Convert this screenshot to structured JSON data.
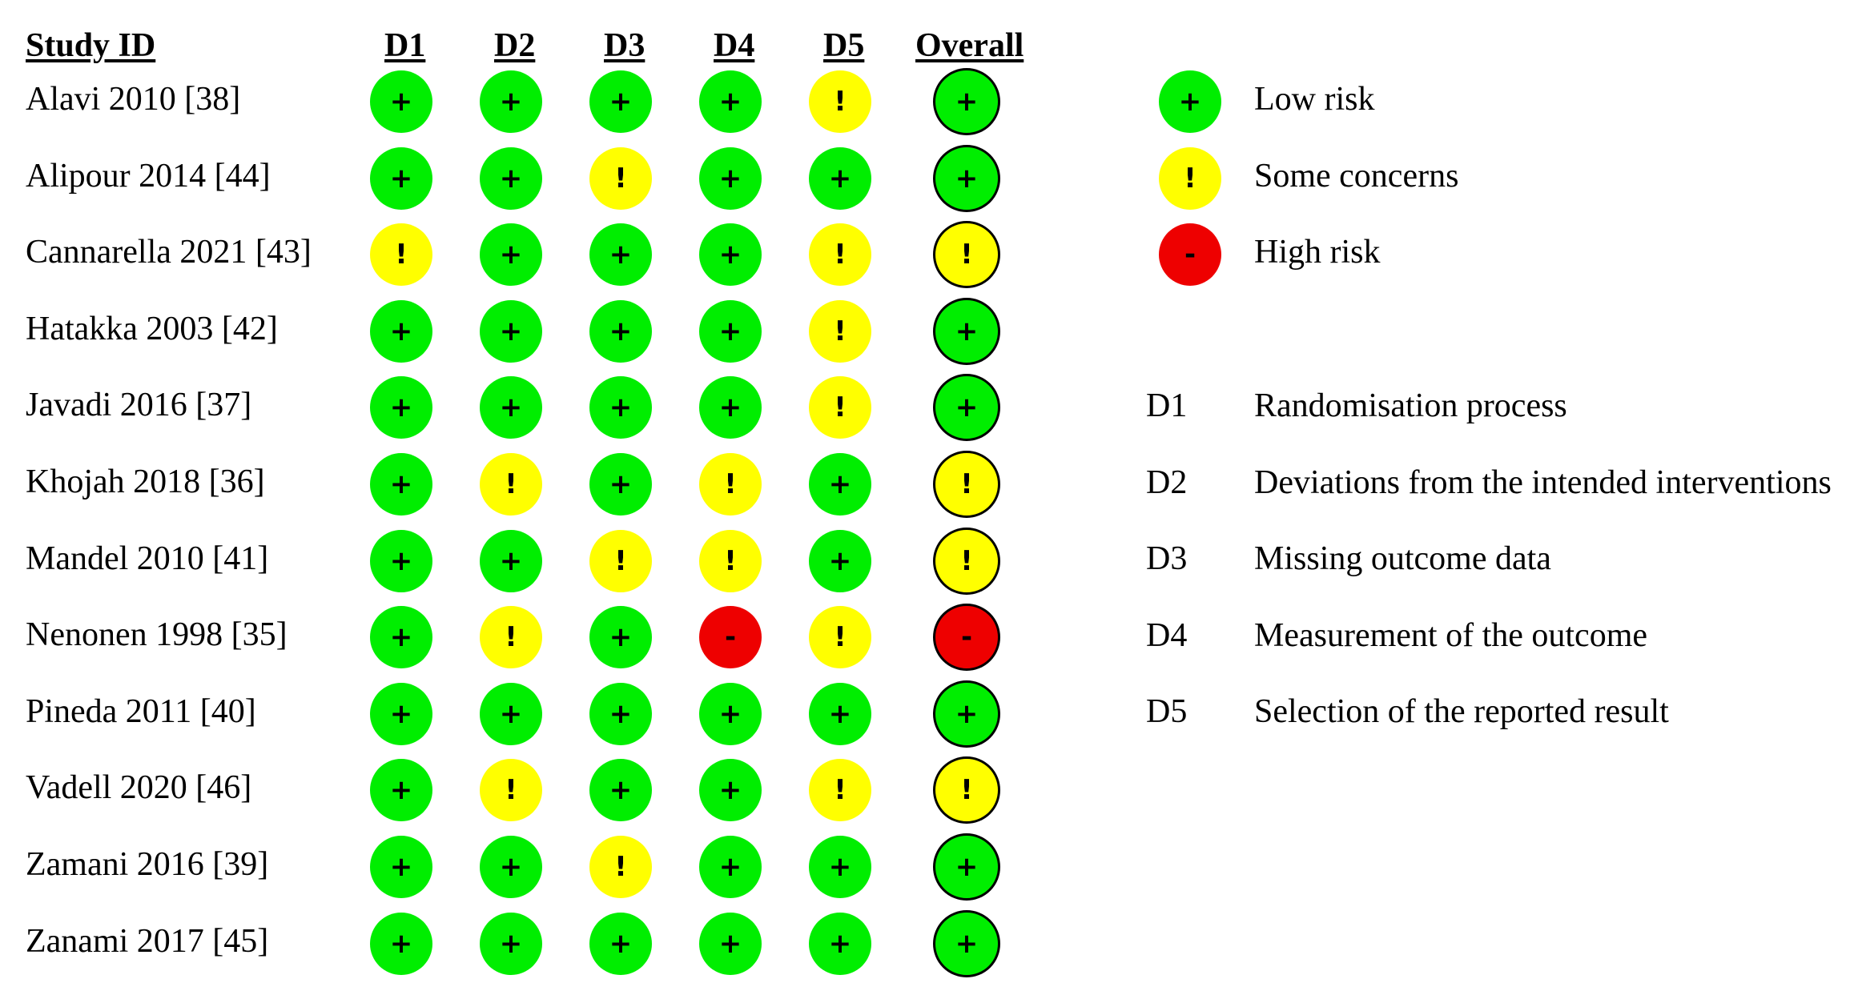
{
  "headers": {
    "study_id": "Study ID",
    "domains": [
      "D1",
      "D2",
      "D3",
      "D4",
      "D5"
    ],
    "overall": "Overall"
  },
  "judgements": {
    "low": {
      "symbol": "+",
      "color": "#00ee00"
    },
    "some": {
      "symbol": "!",
      "color": "#ffff00"
    },
    "high": {
      "symbol": "-",
      "color": "#ee0000"
    }
  },
  "studies": [
    {
      "name": "Alavi 2010 [38]",
      "domains": [
        "low",
        "low",
        "low",
        "low",
        "some"
      ],
      "overall": "low"
    },
    {
      "name": "Alipour 2014 [44]",
      "domains": [
        "low",
        "low",
        "some",
        "low",
        "low"
      ],
      "overall": "low"
    },
    {
      "name": "Cannarella 2021 [43]",
      "domains": [
        "some",
        "low",
        "low",
        "low",
        "some"
      ],
      "overall": "some"
    },
    {
      "name": "Hatakka 2003 [42]",
      "domains": [
        "low",
        "low",
        "low",
        "low",
        "some"
      ],
      "overall": "low"
    },
    {
      "name": "Javadi 2016 [37]",
      "domains": [
        "low",
        "low",
        "low",
        "low",
        "some"
      ],
      "overall": "low"
    },
    {
      "name": "Khojah 2018 [36]",
      "domains": [
        "low",
        "some",
        "low",
        "some",
        "low"
      ],
      "overall": "some"
    },
    {
      "name": "Mandel 2010 [41]",
      "domains": [
        "low",
        "low",
        "some",
        "some",
        "low"
      ],
      "overall": "some"
    },
    {
      "name": "Nenonen 1998 [35]",
      "domains": [
        "low",
        "some",
        "low",
        "high",
        "some"
      ],
      "overall": "high"
    },
    {
      "name": "Pineda 2011 [40]",
      "domains": [
        "low",
        "low",
        "low",
        "low",
        "low"
      ],
      "overall": "low"
    },
    {
      "name": "Vadell 2020 [46]",
      "domains": [
        "low",
        "some",
        "low",
        "low",
        "some"
      ],
      "overall": "some"
    },
    {
      "name": "Zamani 2016 [39]",
      "domains": [
        "low",
        "low",
        "some",
        "low",
        "low"
      ],
      "overall": "low"
    },
    {
      "name": "Zanami 2017 [45]",
      "domains": [
        "low",
        "low",
        "low",
        "low",
        "low"
      ],
      "overall": "low"
    }
  ],
  "legend": {
    "judgements": [
      {
        "key": "low",
        "label": "Low risk"
      },
      {
        "key": "some",
        "label": "Some concerns"
      },
      {
        "key": "high",
        "label": "High risk"
      }
    ],
    "domains": [
      {
        "code": "D1",
        "label": "Randomisation process"
      },
      {
        "code": "D2",
        "label": "Deviations from the intended interventions"
      },
      {
        "code": "D3",
        "label": "Missing outcome data"
      },
      {
        "code": "D4",
        "label": "Measurement of the outcome"
      },
      {
        "code": "D5",
        "label": "Selection of the reported result"
      }
    ]
  }
}
